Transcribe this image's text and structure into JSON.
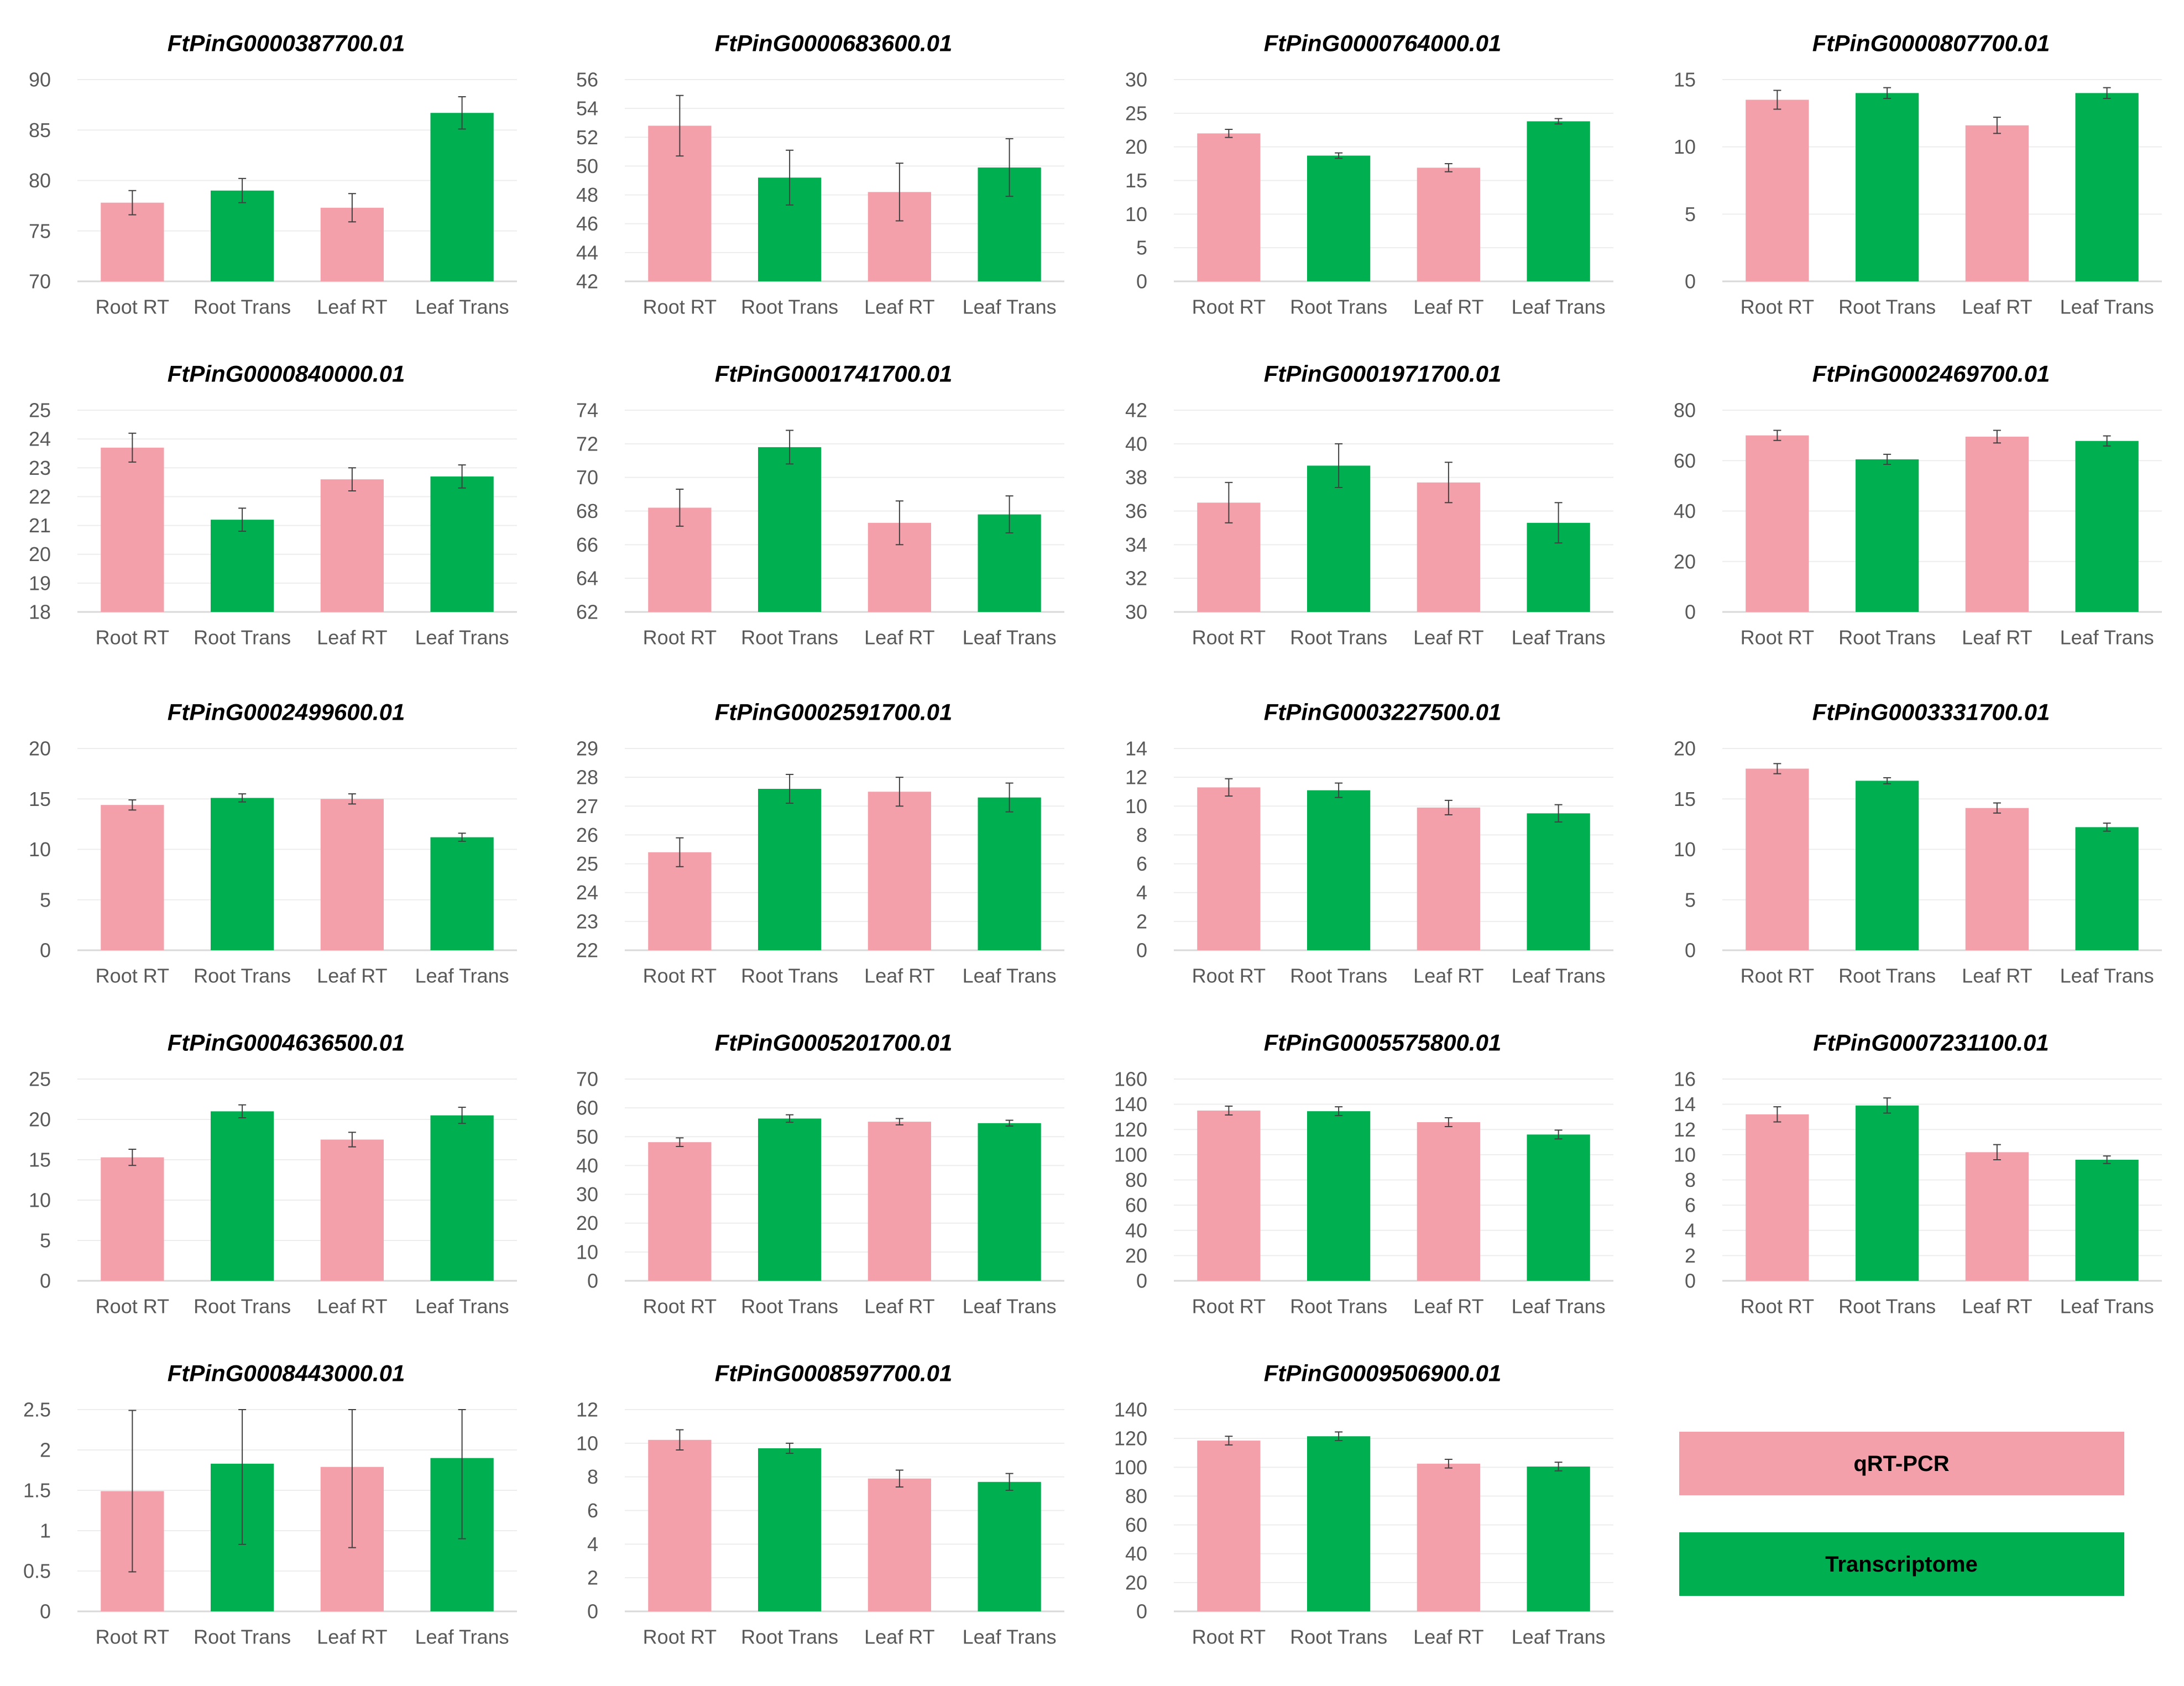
{
  "colors": {
    "qrt_pcr": "#f4a0aa",
    "transcriptome": "#00b050",
    "axis": "#d9d9d9",
    "grid": "#ededed",
    "text": "#595959",
    "error_bar": "#404040"
  },
  "legend": [
    {
      "label": "qRT-PCR",
      "color": "#f4a0aa"
    },
    {
      "label": "Transcriptome",
      "color": "#00b050"
    }
  ],
  "chart_data": [
    {
      "type": "bar",
      "title": "FtPinG0000387700.01",
      "categories": [
        "Root RT",
        "Root Trans",
        "Leaf RT",
        "Leaf Trans"
      ],
      "values": [
        77.8,
        79.0,
        77.3,
        86.7
      ],
      "errors": [
        1.2,
        1.2,
        1.4,
        1.6
      ],
      "ylim": [
        70,
        90
      ],
      "yticks": [
        70,
        75,
        80,
        85,
        90
      ]
    },
    {
      "type": "bar",
      "title": "FtPinG0000683600.01",
      "categories": [
        "Root RT",
        "Root Trans",
        "Leaf RT",
        "Leaf Trans"
      ],
      "values": [
        52.8,
        49.2,
        48.2,
        49.9
      ],
      "errors": [
        2.1,
        1.9,
        2.0,
        2.0
      ],
      "ylim": [
        42,
        56
      ],
      "yticks": [
        42,
        44,
        46,
        48,
        50,
        52,
        54,
        56
      ]
    },
    {
      "type": "bar",
      "title": "FtPinG0000764000.01",
      "categories": [
        "Root RT",
        "Root Trans",
        "Leaf RT",
        "Leaf Trans"
      ],
      "values": [
        22.0,
        18.7,
        16.9,
        23.8
      ],
      "errors": [
        0.6,
        0.4,
        0.6,
        0.4
      ],
      "ylim": [
        0,
        30
      ],
      "yticks": [
        0,
        5,
        10,
        15,
        20,
        25,
        30
      ]
    },
    {
      "type": "bar",
      "title": "FtPinG0000807700.01",
      "categories": [
        "Root RT",
        "Root Trans",
        "Leaf RT",
        "Leaf Trans"
      ],
      "values": [
        13.5,
        14.0,
        11.6,
        14.0
      ],
      "errors": [
        0.7,
        0.4,
        0.6,
        0.4
      ],
      "ylim": [
        0,
        15
      ],
      "yticks": [
        0,
        5,
        10,
        15
      ]
    },
    {
      "type": "bar",
      "title": "FtPinG0000840000.01",
      "categories": [
        "Root RT",
        "Root Trans",
        "Leaf RT",
        "Leaf Trans"
      ],
      "values": [
        23.7,
        21.2,
        22.6,
        22.7
      ],
      "errors": [
        0.5,
        0.4,
        0.4,
        0.4
      ],
      "ylim": [
        18,
        25
      ],
      "yticks": [
        18,
        19,
        20,
        21,
        22,
        23,
        24,
        25
      ]
    },
    {
      "type": "bar",
      "title": "FtPinG0001741700.01",
      "categories": [
        "Root RT",
        "Root Trans",
        "Leaf RT",
        "Leaf Trans"
      ],
      "values": [
        68.2,
        71.8,
        67.3,
        67.8
      ],
      "errors": [
        1.1,
        1.0,
        1.3,
        1.1
      ],
      "ylim": [
        62,
        74
      ],
      "yticks": [
        62,
        64,
        66,
        68,
        70,
        72,
        74
      ]
    },
    {
      "type": "bar",
      "title": "FtPinG0001971700.01",
      "categories": [
        "Root RT",
        "Root Trans",
        "Leaf RT",
        "Leaf Trans"
      ],
      "values": [
        36.5,
        38.7,
        37.7,
        35.3
      ],
      "errors": [
        1.2,
        1.3,
        1.2,
        1.2
      ],
      "ylim": [
        30,
        42
      ],
      "yticks": [
        30,
        32,
        34,
        36,
        38,
        40,
        42
      ]
    },
    {
      "type": "bar",
      "title": "FtPinG0002469700.01",
      "categories": [
        "Root RT",
        "Root Trans",
        "Leaf RT",
        "Leaf Trans"
      ],
      "values": [
        70.0,
        60.5,
        69.5,
        67.8
      ],
      "errors": [
        2.0,
        2.0,
        2.5,
        2.0
      ],
      "ylim": [
        0,
        80
      ],
      "yticks": [
        0,
        20,
        40,
        60,
        80
      ]
    },
    {
      "type": "bar",
      "title": "FtPinG0002499600.01",
      "categories": [
        "Root RT",
        "Root Trans",
        "Leaf RT",
        "Leaf Trans"
      ],
      "values": [
        14.4,
        15.1,
        15.0,
        11.2
      ],
      "errors": [
        0.5,
        0.4,
        0.5,
        0.4
      ],
      "ylim": [
        0,
        20
      ],
      "yticks": [
        0,
        5,
        10,
        15,
        20
      ]
    },
    {
      "type": "bar",
      "title": "FtPinG0002591700.01",
      "categories": [
        "Root RT",
        "Root Trans",
        "Leaf RT",
        "Leaf Trans"
      ],
      "values": [
        25.4,
        27.6,
        27.5,
        27.3
      ],
      "errors": [
        0.5,
        0.5,
        0.5,
        0.5
      ],
      "ylim": [
        22,
        29
      ],
      "yticks": [
        22,
        23,
        24,
        25,
        26,
        27,
        28,
        29
      ]
    },
    {
      "type": "bar",
      "title": "FtPinG0003227500.01",
      "categories": [
        "Root RT",
        "Root Trans",
        "Leaf RT",
        "Leaf Trans"
      ],
      "values": [
        11.3,
        11.1,
        9.9,
        9.5
      ],
      "errors": [
        0.6,
        0.5,
        0.5,
        0.6
      ],
      "ylim": [
        0,
        14
      ],
      "yticks": [
        0,
        2,
        4,
        6,
        8,
        10,
        12,
        14
      ]
    },
    {
      "type": "bar",
      "title": "FtPinG0003331700.01",
      "categories": [
        "Root RT",
        "Root Trans",
        "Leaf RT",
        "Leaf Trans"
      ],
      "values": [
        18.0,
        16.8,
        14.1,
        12.2
      ],
      "errors": [
        0.5,
        0.3,
        0.5,
        0.4
      ],
      "ylim": [
        0,
        20
      ],
      "yticks": [
        0,
        5,
        10,
        15,
        20
      ]
    },
    {
      "type": "bar",
      "title": "FtPinG0004636500.01",
      "categories": [
        "Root RT",
        "Root Trans",
        "Leaf RT",
        "Leaf Trans"
      ],
      "values": [
        15.3,
        21.0,
        17.5,
        20.5
      ],
      "errors": [
        1.0,
        0.8,
        0.9,
        1.0
      ],
      "ylim": [
        0,
        25
      ],
      "yticks": [
        0,
        5,
        10,
        15,
        20,
        25
      ]
    },
    {
      "type": "bar",
      "title": "FtPinG0005201700.01",
      "categories": [
        "Root RT",
        "Root Trans",
        "Leaf RT",
        "Leaf Trans"
      ],
      "values": [
        48.1,
        56.3,
        55.2,
        54.7
      ],
      "errors": [
        1.5,
        1.3,
        1.1,
        1.0
      ],
      "ylim": [
        0,
        70
      ],
      "yticks": [
        0,
        10,
        20,
        30,
        40,
        50,
        60,
        70
      ]
    },
    {
      "type": "bar",
      "title": "FtPinG0005575800.01",
      "categories": [
        "Root RT",
        "Root Trans",
        "Leaf RT",
        "Leaf Trans"
      ],
      "values": [
        135.0,
        134.5,
        125.8,
        116.0
      ],
      "errors": [
        3.5,
        3.5,
        3.5,
        3.5
      ],
      "ylim": [
        0,
        160
      ],
      "yticks": [
        0,
        20,
        40,
        60,
        80,
        100,
        120,
        140,
        160
      ]
    },
    {
      "type": "bar",
      "title": "FtPinG0007231100.01",
      "categories": [
        "Root RT",
        "Root Trans",
        "Leaf RT",
        "Leaf Trans"
      ],
      "values": [
        13.2,
        13.9,
        10.2,
        9.6
      ],
      "errors": [
        0.6,
        0.6,
        0.6,
        0.3
      ],
      "ylim": [
        0,
        16
      ],
      "yticks": [
        0,
        2,
        4,
        6,
        8,
        10,
        12,
        14,
        16
      ]
    },
    {
      "type": "bar",
      "title": "FtPinG0008443000.01",
      "categories": [
        "Root RT",
        "Root Trans",
        "Leaf RT",
        "Leaf Trans"
      ],
      "values": [
        1.49,
        1.83,
        1.79,
        1.9
      ],
      "errors": [
        1.0,
        1.0,
        1.0,
        1.0
      ],
      "ylim": [
        0,
        2.5
      ],
      "yticks": [
        0,
        0.5,
        1,
        1.5,
        2,
        2.5
      ]
    },
    {
      "type": "bar",
      "title": "FtPinG0008597700.01",
      "categories": [
        "Root RT",
        "Root Trans",
        "Leaf RT",
        "Leaf Trans"
      ],
      "values": [
        10.2,
        9.7,
        7.9,
        7.7
      ],
      "errors": [
        0.6,
        0.3,
        0.5,
        0.5
      ],
      "ylim": [
        0,
        12
      ],
      "yticks": [
        0,
        2,
        4,
        6,
        8,
        10,
        12
      ]
    },
    {
      "type": "bar",
      "title": "FtPinG0009506900.01",
      "categories": [
        "Root RT",
        "Root Trans",
        "Leaf RT",
        "Leaf Trans"
      ],
      "values": [
        118.5,
        121.5,
        102.5,
        100.5
      ],
      "errors": [
        3.0,
        3.0,
        3.0,
        3.0
      ],
      "ylim": [
        0,
        140
      ],
      "yticks": [
        0,
        20,
        40,
        60,
        80,
        100,
        120,
        140
      ]
    }
  ]
}
